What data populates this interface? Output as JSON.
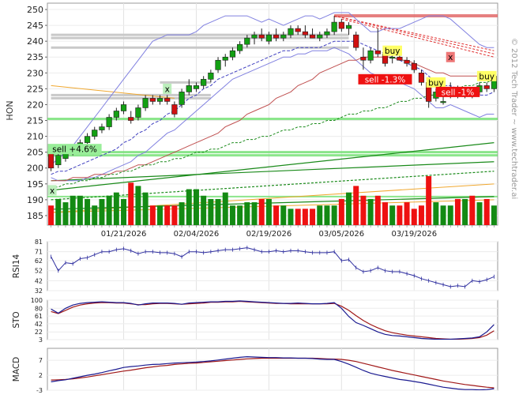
{
  "chart_data": {
    "type": "candlestick",
    "symbol": "HON",
    "watermark": "© 2012 Tech Trader ~ www.techtrader.ai",
    "x_tick_labels": [
      "01/21/2026",
      "02/04/2026",
      "02/19/2026",
      "03/05/2026",
      "03/19/2026"
    ],
    "x_tick_indices": [
      10,
      20,
      30,
      40,
      50
    ],
    "colors": {
      "up": "#13a013",
      "down": "#d01010",
      "vol_up": "#138a13",
      "vol_down": "#ee1111"
    },
    "price_panel": {
      "ylim": [
        182,
        252
      ],
      "yticks": [
        185,
        190,
        195,
        200,
        205,
        210,
        215,
        220,
        225,
        230,
        235,
        240,
        245,
        250
      ],
      "candles": [
        {
          "o": 205,
          "h": 206,
          "l": 199,
          "c": 200
        },
        {
          "o": 201,
          "h": 205,
          "l": 200,
          "c": 204
        },
        {
          "o": 203,
          "h": 206,
          "l": 202,
          "c": 205
        },
        {
          "o": 205,
          "h": 207,
          "l": 204,
          "c": 206
        },
        {
          "o": 206,
          "h": 209,
          "l": 205,
          "c": 208
        },
        {
          "o": 208,
          "h": 211,
          "l": 207,
          "c": 210
        },
        {
          "o": 210,
          "h": 213,
          "l": 209,
          "c": 212
        },
        {
          "o": 212,
          "h": 214,
          "l": 211,
          "c": 213
        },
        {
          "o": 213,
          "h": 217,
          "l": 212,
          "c": 216
        },
        {
          "o": 216,
          "h": 219,
          "l": 215,
          "c": 218
        },
        {
          "o": 218,
          "h": 221,
          "l": 217,
          "c": 220
        },
        {
          "o": 216,
          "h": 218,
          "l": 214,
          "c": 215
        },
        {
          "o": 216,
          "h": 220,
          "l": 215,
          "c": 219
        },
        {
          "o": 219,
          "h": 223,
          "l": 218,
          "c": 222
        },
        {
          "o": 222,
          "h": 223,
          "l": 220,
          "c": 221
        },
        {
          "o": 221,
          "h": 223,
          "l": 220,
          "c": 222
        },
        {
          "o": 222,
          "h": 223,
          "l": 220,
          "c": 221
        },
        {
          "o": 220,
          "h": 221,
          "l": 216,
          "c": 217
        },
        {
          "o": 220,
          "h": 225,
          "l": 219,
          "c": 224
        },
        {
          "o": 224,
          "h": 228,
          "l": 223,
          "c": 226
        },
        {
          "o": 225,
          "h": 227,
          "l": 224,
          "c": 226
        },
        {
          "o": 226,
          "h": 229,
          "l": 225,
          "c": 228
        },
        {
          "o": 228,
          "h": 231,
          "l": 227,
          "c": 230
        },
        {
          "o": 231,
          "h": 235,
          "l": 230,
          "c": 234
        },
        {
          "o": 234,
          "h": 236,
          "l": 232,
          "c": 235
        },
        {
          "o": 235,
          "h": 238,
          "l": 234,
          "c": 237
        },
        {
          "o": 237,
          "h": 240,
          "l": 236,
          "c": 239
        },
        {
          "o": 239,
          "h": 242,
          "l": 238,
          "c": 241
        },
        {
          "o": 241,
          "h": 243,
          "l": 239,
          "c": 242
        },
        {
          "o": 242,
          "h": 244,
          "l": 240,
          "c": 241
        },
        {
          "o": 240,
          "h": 243,
          "l": 239,
          "c": 242
        },
        {
          "o": 242,
          "h": 244,
          "l": 240,
          "c": 241
        },
        {
          "o": 241,
          "h": 243,
          "l": 240,
          "c": 242
        },
        {
          "o": 242,
          "h": 245,
          "l": 241,
          "c": 244
        },
        {
          "o": 244,
          "h": 245,
          "l": 242,
          "c": 243
        },
        {
          "o": 243,
          "h": 245,
          "l": 241,
          "c": 242
        },
        {
          "o": 242,
          "h": 244,
          "l": 241,
          "c": 241
        },
        {
          "o": 241,
          "h": 243,
          "l": 240,
          "c": 242
        },
        {
          "o": 242,
          "h": 244,
          "l": 241,
          "c": 243
        },
        {
          "o": 243,
          "h": 248,
          "l": 242,
          "c": 246
        },
        {
          "o": 246,
          "h": 247,
          "l": 243,
          "c": 244
        },
        {
          "o": 244,
          "h": 246,
          "l": 242,
          "c": 245
        },
        {
          "o": 242,
          "h": 243,
          "l": 237,
          "c": 238
        },
        {
          "o": 235,
          "h": 238,
          "l": 231,
          "c": 234
        },
        {
          "o": 234,
          "h": 238,
          "l": 233,
          "c": 237
        },
        {
          "o": 237,
          "h": 244,
          "l": 235,
          "c": 236
        },
        {
          "o": 236,
          "h": 237,
          "l": 232,
          "c": 233
        },
        {
          "o": 235,
          "h": 236,
          "l": 233,
          "c": 235
        },
        {
          "o": 235,
          "h": 236,
          "l": 234,
          "c": 234
        },
        {
          "o": 234,
          "h": 235,
          "l": 232,
          "c": 233
        },
        {
          "o": 233,
          "h": 234,
          "l": 230,
          "c": 231
        },
        {
          "o": 230,
          "h": 231,
          "l": 226,
          "c": 227
        },
        {
          "o": 227,
          "h": 228,
          "l": 219,
          "c": 221
        },
        {
          "o": 222,
          "h": 225,
          "l": 221,
          "c": 224
        },
        {
          "o": 221,
          "h": 223,
          "l": 220,
          "c": 221
        },
        {
          "o": 223,
          "h": 227,
          "l": 222,
          "c": 225
        },
        {
          "o": 224,
          "h": 226,
          "l": 222,
          "c": 223
        },
        {
          "o": 223,
          "h": 225,
          "l": 222,
          "c": 224
        },
        {
          "o": 224,
          "h": 225,
          "l": 222,
          "c": 223
        },
        {
          "o": 224,
          "h": 227,
          "l": 223,
          "c": 226
        },
        {
          "o": 226,
          "h": 227,
          "l": 224,
          "c": 225
        },
        {
          "o": 225,
          "h": 230,
          "l": 224,
          "c": 229
        }
      ],
      "upper_band": [
        201,
        203,
        205,
        207,
        210,
        213,
        216,
        219,
        222,
        225,
        228,
        231,
        234,
        237,
        240,
        241,
        242,
        242,
        242,
        242,
        243,
        245,
        246,
        247,
        248,
        248,
        248,
        248,
        247,
        246,
        247,
        246,
        245,
        246,
        247,
        248,
        248,
        247,
        248,
        249,
        249,
        249,
        247,
        245,
        243,
        243,
        244,
        244,
        244,
        245,
        246,
        247,
        248,
        248,
        248,
        247,
        245,
        243,
        241,
        239,
        238,
        238
      ],
      "lower_band": [
        197,
        196,
        196,
        196,
        196,
        197,
        197,
        198,
        199,
        200,
        201,
        202,
        204,
        205,
        207,
        209,
        211,
        212,
        214,
        216,
        218,
        220,
        222,
        224,
        226,
        228,
        229,
        230,
        231,
        232,
        233,
        234,
        235,
        235,
        236,
        236,
        237,
        237,
        237,
        238,
        237,
        236,
        234,
        232,
        230,
        229,
        229,
        228,
        227,
        226,
        225,
        223,
        221,
        219,
        219,
        220,
        219,
        218,
        217,
        216,
        217,
        217
      ],
      "ma_short": [
        198,
        199,
        199,
        200,
        201,
        202,
        203,
        204,
        205,
        206,
        208,
        209,
        211,
        212,
        214,
        215,
        217,
        218,
        220,
        222,
        223,
        225,
        226,
        228,
        229,
        230,
        231,
        232,
        233,
        234,
        235,
        236,
        237,
        237,
        238,
        238,
        238,
        238,
        239,
        240,
        240,
        240,
        240,
        239,
        238,
        237,
        236,
        235,
        234,
        233,
        232,
        231,
        229,
        227,
        226,
        226,
        225,
        224,
        224,
        223,
        223,
        224
      ],
      "ma_long": [
        196,
        196,
        196,
        197,
        197,
        197,
        198,
        198,
        198,
        199,
        199,
        200,
        201,
        201,
        202,
        203,
        204,
        205,
        206,
        207,
        208,
        209,
        210,
        211,
        213,
        214,
        215,
        217,
        218,
        219,
        220,
        222,
        223,
        224,
        226,
        227,
        228,
        230,
        231,
        232,
        233,
        234,
        234,
        235,
        235,
        235,
        235,
        235,
        234,
        234,
        233,
        232,
        231,
        230,
        230,
        229,
        229,
        229,
        229,
        229,
        229,
        230
      ],
      "trend_dashed": [
        194,
        194,
        195,
        195,
        196,
        196,
        197,
        197,
        198,
        198,
        199,
        199,
        200,
        201,
        201,
        202,
        202,
        203,
        203,
        204,
        205,
        205,
        206,
        206,
        207,
        208,
        208,
        209,
        209,
        210,
        210,
        211,
        212,
        212,
        213,
        213,
        214,
        214,
        215,
        215,
        216,
        217,
        217,
        218,
        218,
        219,
        219,
        220,
        221,
        221,
        222,
        222,
        223,
        223,
        224,
        224,
        225,
        226,
        226,
        227,
        227,
        228
      ],
      "resistance_lines": [
        248,
        242,
        241,
        238
      ],
      "gray_levels": [
        {
          "price": 242,
          "x_from": 0,
          "x_to": 41
        },
        {
          "price": 241,
          "x_from": 0,
          "x_to": 41
        },
        {
          "price": 238,
          "x_from": 0,
          "x_to": 41
        },
        {
          "price": 227,
          "x_from": 15,
          "x_to": 22
        },
        {
          "price": 223,
          "x_from": 0,
          "x_to": 22
        },
        {
          "price": 222,
          "x_from": 0,
          "x_to": 22
        }
      ],
      "green_levels": [
        {
          "price": 215.5,
          "width": 2
        },
        {
          "price": 205,
          "width": 2
        },
        {
          "price": 204,
          "width": 2
        },
        {
          "price": 191,
          "width": 1
        }
      ],
      "support_lines": [
        {
          "from": [
            0,
            193
          ],
          "to": [
            61,
            208
          ],
          "style": "solid"
        },
        {
          "from": [
            0,
            190
          ],
          "to": [
            61,
            199
          ],
          "style": "dashed"
        },
        {
          "from": [
            0,
            187
          ],
          "to": [
            61,
            191
          ],
          "style": "solid"
        },
        {
          "from": [
            0,
            196
          ],
          "to": [
            61,
            202
          ],
          "style": "solid"
        }
      ],
      "red_trendlines": [
        {
          "from": [
            39,
            248
          ],
          "to": [
            61,
            237
          ]
        },
        {
          "from": [
            40,
            247
          ],
          "to": [
            61,
            235
          ]
        },
        {
          "from": [
            39,
            248
          ],
          "to": [
            61,
            236
          ]
        }
      ],
      "orange_lines": [
        {
          "from": [
            0,
            226
          ],
          "to": [
            17,
            222
          ]
        },
        {
          "from": [
            0,
            186
          ],
          "to": [
            61,
            195
          ]
        },
        {
          "from": [
            0,
            186
          ],
          "to": [
            61,
            190
          ]
        }
      ],
      "annotations": [
        {
          "text": "sell +4.6%",
          "i": 0,
          "price": 206,
          "kind": "sell-green"
        },
        {
          "text": "x",
          "i": 0,
          "price": 193,
          "kind": "x-green"
        },
        {
          "text": "x",
          "i": 16,
          "price": 225,
          "kind": "x-green"
        },
        {
          "text": "buy",
          "i": 47,
          "price": 237,
          "kind": "buy"
        },
        {
          "text": "sell -1.3%",
          "i": 46,
          "price": 228,
          "kind": "sell-red"
        },
        {
          "text": "buy",
          "i": 53,
          "price": 227,
          "kind": "buy"
        },
        {
          "text": "x",
          "i": 55,
          "price": 235,
          "kind": "x-red"
        },
        {
          "text": "sell -1%",
          "i": 56,
          "price": 224,
          "kind": "sell-red"
        },
        {
          "text": "buy",
          "i": 60,
          "price": 229,
          "kind": "buy"
        }
      ]
    },
    "volume": [
      6,
      8,
      7,
      9,
      9,
      8,
      6,
      8,
      9,
      10,
      8,
      13,
      12,
      10,
      6,
      6,
      6,
      6,
      7,
      11,
      11,
      9,
      8,
      8,
      10,
      6,
      6,
      7,
      7,
      8,
      8,
      6,
      6,
      5,
      5,
      5,
      5,
      6,
      6,
      6,
      8,
      10,
      12,
      9,
      8,
      9,
      7,
      6,
      6,
      7,
      5,
      6,
      15,
      7,
      6,
      6,
      8,
      8,
      9,
      7,
      8,
      6
    ],
    "rsi_panel": {
      "label": "RSI14",
      "ylim": [
        32,
        81
      ],
      "yticks": [
        32,
        42,
        52,
        62,
        71,
        81
      ],
      "values": [
        66,
        52,
        60,
        59,
        64,
        65,
        68,
        71,
        71,
        73,
        74,
        72,
        69,
        71,
        71,
        70,
        70,
        69,
        66,
        71,
        71,
        70,
        71,
        72,
        73,
        73,
        74,
        75,
        73,
        71,
        71,
        72,
        71,
        72,
        72,
        71,
        70,
        70,
        70,
        71,
        62,
        63,
        55,
        51,
        52,
        55,
        52,
        51,
        51,
        49,
        47,
        44,
        42,
        40,
        38,
        36,
        37,
        36,
        42,
        41,
        43,
        46
      ]
    },
    "sto_panel": {
      "label": "STO",
      "ylim": [
        3,
        100
      ],
      "yticks": [
        3,
        22,
        42,
        61,
        80,
        100
      ],
      "k": [
        78,
        68,
        80,
        88,
        92,
        94,
        95,
        96,
        95,
        94,
        94,
        92,
        88,
        91,
        93,
        93,
        93,
        92,
        90,
        93,
        94,
        95,
        96,
        96,
        97,
        97,
        98,
        97,
        96,
        95,
        94,
        93,
        92,
        92,
        93,
        92,
        91,
        91,
        92,
        94,
        80,
        60,
        45,
        38,
        30,
        22,
        16,
        13,
        12,
        10,
        8,
        6,
        5,
        4,
        4,
        4,
        5,
        6,
        7,
        10,
        22,
        40
      ],
      "d": [
        72,
        67,
        75,
        83,
        88,
        91,
        93,
        94,
        94,
        93,
        93,
        91,
        89,
        89,
        91,
        92,
        92,
        91,
        90,
        91,
        92,
        93,
        95,
        95,
        96,
        96,
        97,
        96,
        95,
        94,
        93,
        92,
        92,
        91,
        91,
        91,
        91,
        91,
        91,
        92,
        85,
        75,
        62,
        50,
        40,
        32,
        25,
        20,
        17,
        14,
        12,
        10,
        8,
        6,
        5,
        4,
        4,
        5,
        6,
        8,
        14,
        25
      ]
    },
    "macd_panel": {
      "label": "MACD",
      "ylim": [
        -3,
        11
      ],
      "yticks": [
        -3,
        2,
        7
      ],
      "macd": [
        -0.2,
        0.2,
        0.5,
        1.0,
        1.5,
        2.0,
        2.4,
        2.9,
        3.5,
        4.0,
        4.6,
        4.9,
        5.1,
        5.4,
        5.6,
        5.7,
        5.9,
        6.1,
        6.2,
        6.3,
        6.4,
        6.6,
        6.8,
        7.1,
        7.4,
        7.7,
        8.0,
        8.2,
        8.1,
        8.0,
        7.9,
        7.9,
        7.8,
        7.8,
        7.7,
        7.7,
        7.6,
        7.4,
        7.3,
        7.3,
        6.6,
        5.7,
        4.7,
        3.6,
        2.7,
        2.1,
        1.6,
        1.1,
        0.6,
        0.3,
        -0.1,
        -0.5,
        -1.0,
        -1.5,
        -2.0,
        -2.3,
        -2.6,
        -2.8,
        -2.8,
        -2.9,
        -2.8,
        -2.5
      ],
      "signal": [
        0.4,
        0.5,
        0.6,
        0.8,
        1.1,
        1.4,
        1.8,
        2.2,
        2.6,
        3.0,
        3.4,
        3.7,
        4.1,
        4.5,
        4.8,
        5.1,
        5.3,
        5.6,
        5.8,
        6.0,
        6.1,
        6.3,
        6.5,
        6.7,
        6.9,
        7.1,
        7.3,
        7.5,
        7.6,
        7.7,
        7.7,
        7.7,
        7.7,
        7.7,
        7.7,
        7.7,
        7.7,
        7.6,
        7.5,
        7.4,
        7.3,
        7.0,
        6.6,
        6.0,
        5.4,
        4.8,
        4.2,
        3.6,
        3.1,
        2.6,
        2.1,
        1.6,
        1.1,
        0.6,
        0.1,
        -0.3,
        -0.7,
        -1.1,
        -1.4,
        -1.7,
        -2.0,
        -2.2
      ]
    }
  }
}
